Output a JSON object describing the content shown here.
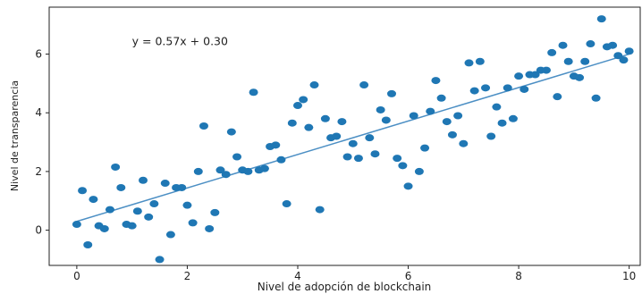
{
  "chart_data": {
    "type": "scatter",
    "title": "",
    "xlabel": "Nivel de adopción de blockchain",
    "ylabel": "Nivel de transparencia",
    "xlim": [
      -0.5,
      10.2
    ],
    "ylim": [
      -1.2,
      7.6
    ],
    "xticks": [
      0,
      2,
      4,
      6,
      8,
      10
    ],
    "yticks": [
      0,
      2,
      4,
      6
    ],
    "grid": false,
    "annotation": {
      "text": "y = 0.57x + 0.30",
      "x": 1.0,
      "y": 6.3
    },
    "colors": {
      "points": "#1f77b4",
      "line": "#4c8fc4"
    },
    "series": [
      {
        "type": "scatter",
        "x": [
          0.0,
          0.1,
          0.2,
          0.3,
          0.4,
          0.5,
          0.6,
          0.7,
          0.8,
          0.9,
          1.0,
          1.1,
          1.2,
          1.3,
          1.4,
          1.5,
          1.6,
          1.7,
          1.8,
          1.9,
          2.0,
          2.1,
          2.2,
          2.3,
          2.4,
          2.5,
          2.6,
          2.7,
          2.8,
          2.9,
          3.0,
          3.1,
          3.2,
          3.3,
          3.4,
          3.5,
          3.6,
          3.7,
          3.8,
          3.9,
          4.0,
          4.1,
          4.2,
          4.3,
          4.4,
          4.5,
          4.6,
          4.7,
          4.8,
          4.9,
          5.0,
          5.1,
          5.2,
          5.3,
          5.4,
          5.5,
          5.6,
          5.7,
          5.8,
          5.9,
          6.0,
          6.1,
          6.2,
          6.3,
          6.4,
          6.5,
          6.6,
          6.7,
          6.8,
          6.9,
          7.0,
          7.1,
          7.2,
          7.3,
          7.4,
          7.5,
          7.6,
          7.7,
          7.8,
          7.9,
          8.0,
          8.1,
          8.2,
          8.3,
          8.4,
          8.5,
          8.6,
          8.7,
          8.8,
          8.9,
          9.0,
          9.1,
          9.2,
          9.3,
          9.4,
          9.5,
          9.6,
          9.7,
          9.8,
          9.9,
          10.0
        ],
        "y": [
          0.2,
          1.35,
          -0.5,
          1.05,
          0.15,
          0.05,
          0.7,
          2.15,
          1.45,
          0.2,
          0.15,
          0.65,
          1.7,
          0.45,
          0.9,
          -1.0,
          1.6,
          -0.15,
          1.45,
          1.45,
          0.85,
          0.25,
          2.0,
          3.55,
          0.05,
          0.6,
          2.05,
          1.9,
          3.35,
          2.5,
          2.05,
          2.0,
          4.7,
          2.05,
          2.1,
          2.85,
          2.9,
          2.4,
          0.9,
          3.65,
          4.25,
          4.45,
          3.5,
          4.95,
          0.7,
          3.8,
          3.15,
          3.2,
          3.7,
          2.5,
          2.95,
          2.45,
          4.95,
          3.15,
          2.6,
          4.1,
          3.75,
          4.65,
          2.45,
          2.2,
          1.5,
          3.9,
          2.0,
          2.8,
          4.05,
          5.1,
          4.5,
          3.7,
          3.25,
          3.9,
          2.95,
          5.7,
          4.75,
          5.75,
          4.85,
          3.2,
          4.2,
          3.65,
          4.85,
          3.8,
          5.25,
          4.8,
          5.3,
          5.3,
          5.45,
          5.45,
          6.05,
          4.55,
          6.3,
          5.75,
          5.25,
          5.2,
          5.75,
          6.35,
          4.5,
          7.2,
          6.25,
          6.3,
          5.95,
          5.8,
          6.1
        ]
      },
      {
        "type": "line",
        "slope": 0.57,
        "intercept": 0.3,
        "x_range": [
          0,
          10
        ]
      }
    ]
  }
}
